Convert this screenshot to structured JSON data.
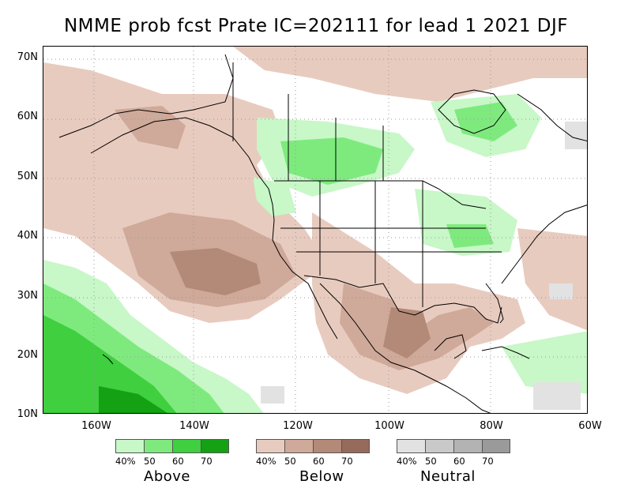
{
  "title": "NMME prob fcst Prate IC=202111 for lead 1 2021 DJF",
  "lat_labels": [
    "70N",
    "60N",
    "50N",
    "40N",
    "30N",
    "20N",
    "10N"
  ],
  "lon_labels": [
    "160W",
    "140W",
    "120W",
    "100W",
    "80W",
    "60W"
  ],
  "colors": {
    "above": [
      "#c8f7c8",
      "#7eea7e",
      "#3fcf3f",
      "#14a114"
    ],
    "below": [
      "#e8cbbf",
      "#cfa999",
      "#b38978",
      "#966b5c"
    ],
    "neutral": [
      "#e2e2e2",
      "#c9c9c9",
      "#b3b3b3",
      "#9a9a9a"
    ],
    "grid": "#9a9a9a",
    "coast": "#000000"
  },
  "legend": {
    "above": {
      "name": "Above",
      "ticks": [
        "40%",
        "50",
        "60",
        "70"
      ]
    },
    "below": {
      "name": "Below",
      "ticks": [
        "40%",
        "50",
        "60",
        "70"
      ]
    },
    "neutral": {
      "name": "Neutral",
      "ticks": [
        "40%",
        "50",
        "60",
        "70"
      ]
    }
  }
}
